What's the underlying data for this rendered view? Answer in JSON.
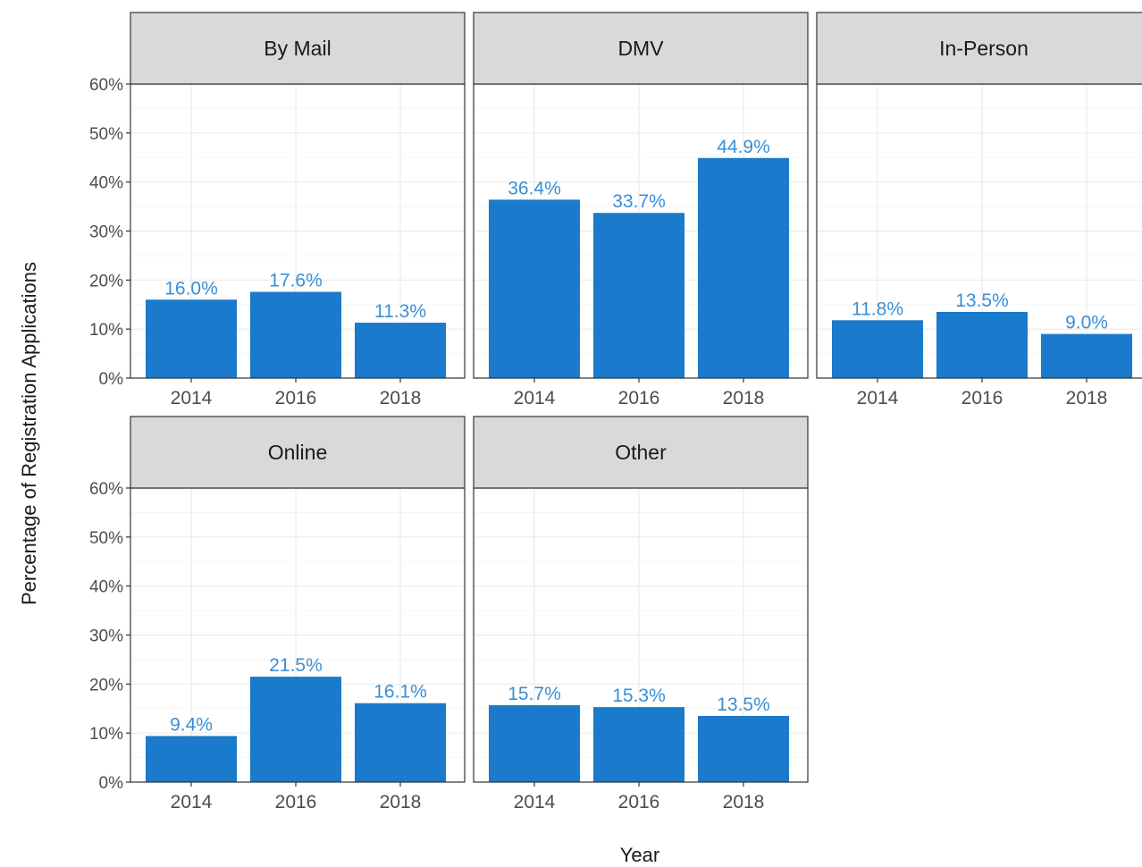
{
  "chart_data": {
    "type": "bar",
    "xlabel": "Year",
    "ylabel": "Percentage of Registration Applications",
    "ylim": [
      0,
      60
    ],
    "yticks": [
      "0%",
      "10%",
      "20%",
      "30%",
      "40%",
      "50%",
      "60%"
    ],
    "categories": [
      "2014",
      "2016",
      "2018"
    ],
    "grid": true,
    "facets": [
      {
        "name": "By Mail",
        "values": [
          16.0,
          17.6,
          11.3
        ],
        "labels": [
          "16.0%",
          "17.6%",
          "11.3%"
        ]
      },
      {
        "name": "DMV",
        "values": [
          36.4,
          33.7,
          44.9
        ],
        "labels": [
          "36.4%",
          "33.7%",
          "44.9%"
        ]
      },
      {
        "name": "In-Person",
        "values": [
          11.8,
          13.5,
          9.0
        ],
        "labels": [
          "11.8%",
          "13.5%",
          "9.0%"
        ]
      },
      {
        "name": "Online",
        "values": [
          9.4,
          21.5,
          16.1
        ],
        "labels": [
          "9.4%",
          "21.5%",
          "16.1%"
        ]
      },
      {
        "name": "Other",
        "values": [
          15.7,
          15.3,
          13.5
        ],
        "labels": [
          "15.7%",
          "15.3%",
          "13.5%"
        ]
      }
    ]
  },
  "colors": {
    "bar": "#1a7acb",
    "label": "#3a8fd6",
    "strip_bg": "#d9d9d9",
    "panel_border": "#333333",
    "grid": "#ebebeb",
    "tick_text": "#4d4d4d",
    "axis_title": "#1a1a1a"
  }
}
